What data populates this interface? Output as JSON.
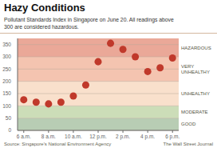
{
  "chart_data": {
    "type": "scatter",
    "title": "Hazy Conditions",
    "subtitle": "Pollutant Standards Index in Singapore on June 20. All readings above\n300 are considered hazardous.",
    "source": "Source: Singapore's National Environment Agency",
    "credit": "The Wall Street Journal",
    "x": [
      6,
      7,
      8,
      9,
      10,
      11,
      12,
      13,
      14,
      15,
      16,
      17,
      18
    ],
    "values": [
      125,
      115,
      108,
      115,
      140,
      185,
      280,
      355,
      330,
      300,
      240,
      255,
      295
    ],
    "color": "#c0392b",
    "xlim": [
      5.5,
      18.5
    ],
    "xticks": [
      {
        "value": 6,
        "label": "6 a.m."
      },
      {
        "value": 8,
        "label": "8 a.m."
      },
      {
        "value": 10,
        "label": "10 a.m."
      },
      {
        "value": 12,
        "label": "12 p.m."
      },
      {
        "value": 14,
        "label": "2 p.m."
      },
      {
        "value": 16,
        "label": "4 p.m."
      },
      {
        "value": 18,
        "label": "6 p.m."
      }
    ],
    "ylim": [
      0,
      375
    ],
    "yticks": [
      0,
      50,
      100,
      150,
      200,
      250,
      300,
      350
    ],
    "grid": true,
    "zones": [
      {
        "ymin": 0,
        "ymax": 50,
        "color": "#b8cdb4",
        "label": "GOOD"
      },
      {
        "ymin": 50,
        "ymax": 100,
        "color": "#ccddb8",
        "label": "MODERATE"
      },
      {
        "ymin": 100,
        "ymax": 200,
        "color": "#f9e0cc",
        "label": "UNHEALTHY"
      },
      {
        "ymin": 200,
        "ymax": 300,
        "color": "#f4c4b0",
        "label": "VERY\nUNHEALTHY"
      },
      {
        "ymin": 300,
        "ymax": 375,
        "color": "#eaa898",
        "label": "HAZARDOUS"
      }
    ]
  }
}
